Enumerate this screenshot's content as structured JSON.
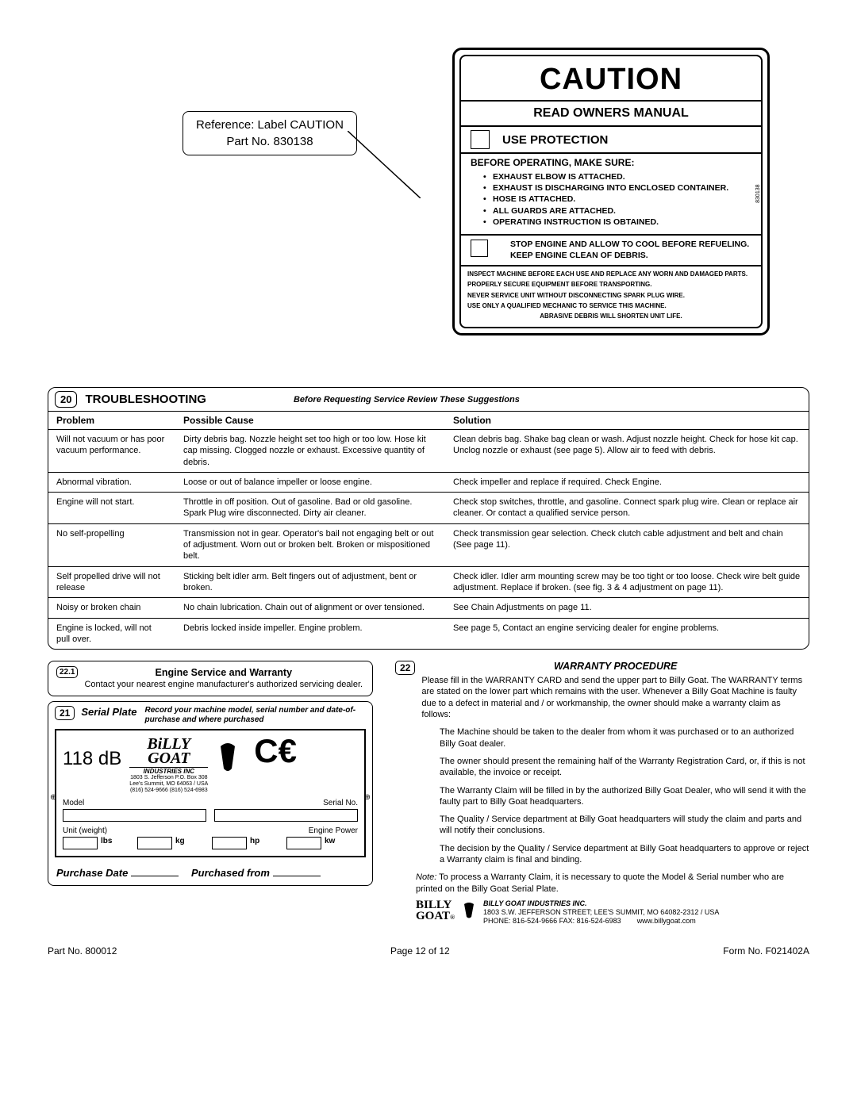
{
  "reference": {
    "line1": "Reference: Label CAUTION",
    "line2": "Part No. 830138"
  },
  "caution": {
    "title": "CAUTION",
    "subtitle": "READ OWNERS MANUAL",
    "protection": "USE PROTECTION",
    "before_title": "BEFORE OPERATING, MAKE SURE:",
    "before_items": [
      "EXHAUST ELBOW IS ATTACHED.",
      "EXHAUST IS DISCHARGING INTO ENCLOSED CONTAINER.",
      "HOSE IS ATTACHED.",
      "ALL GUARDS ARE ATTACHED.",
      "OPERATING INSTRUCTION IS OBTAINED."
    ],
    "side_number": "830138",
    "stop": "STOP ENGINE AND ALLOW TO COOL BEFORE REFUELING. KEEP ENGINE CLEAN OF DEBRIS.",
    "inspect": [
      "INSPECT MACHINE BEFORE EACH USE AND REPLACE ANY WORN AND DAMAGED PARTS.",
      "PROPERLY SECURE EQUIPMENT BEFORE TRANSPORTING.",
      "NEVER SERVICE UNIT WITHOUT DISCONNECTING SPARK PLUG WIRE.",
      "USE ONLY A QUALIFIED MECHANIC TO SERVICE THIS MACHINE.",
      "ABRASIVE DEBRIS WILL SHORTEN UNIT LIFE."
    ]
  },
  "troubleshoot": {
    "num": "20",
    "title": "TROUBLESHOOTING",
    "note": "Before Requesting Service Review These Suggestions",
    "headers": [
      "Problem",
      "Possible Cause",
      "Solution"
    ],
    "rows": [
      [
        "Will not vacuum or has poor vacuum performance.",
        "Dirty debris bag. Nozzle height set too high or too low. Hose kit cap missing. Clogged nozzle or exhaust. Excessive quantity of debris.",
        "Clean debris bag. Shake bag clean or wash. Adjust nozzle height. Check for hose kit cap. Unclog nozzle or exhaust (see page 5). Allow air to feed with debris."
      ],
      [
        "Abnormal vibration.",
        "Loose or out of balance impeller or loose engine.",
        "Check impeller and replace if required. Check Engine."
      ],
      [
        "Engine will not start.",
        "Throttle in off position. Out of gasoline. Bad or old gasoline. Spark Plug wire disconnected. Dirty air cleaner.",
        "Check stop switches, throttle, and gasoline. Connect spark plug wire. Clean or replace air cleaner. Or contact a qualified service person."
      ],
      [
        "No self-propelling",
        "Transmission not in gear. Operator's bail not engaging belt or out of adjustment. Worn out or broken belt. Broken or mispositioned belt.",
        "Check transmission gear selection. Check clutch cable adjustment and belt and chain (See page 11)."
      ],
      [
        "Self propelled drive will not release",
        "Sticking belt idler arm. Belt fingers out of adjustment, bent or broken.",
        "Check idler. Idler arm mounting screw may be too tight or too loose. Check wire belt guide adjustment. Replace if broken. (see fig. 3 & 4 adjustment on page 11)."
      ],
      [
        "Noisy or broken chain",
        "No chain lubrication. Chain out of alignment or over tensioned.",
        "See Chain Adjustments on page 11."
      ],
      [
        "Engine is locked, will not pull over.",
        "Debris locked inside impeller. Engine problem.",
        "See page 5, Contact an engine servicing dealer for engine problems."
      ]
    ]
  },
  "engine_svc": {
    "num": "22.1",
    "title": "Engine Service and Warranty",
    "text": "Contact your nearest engine manufacturer's authorized servicing dealer."
  },
  "serial": {
    "num": "21",
    "title": "Serial Plate",
    "note": "Record your machine model, serial number and date-of-purchase and where purchased",
    "db": "118 dB",
    "brand1": "BiLLY",
    "brand2": "GOAT",
    "industries": "INDUSTRIES INC",
    "addr1": "1803 S. Jefferson   P.O. Box 308",
    "addr2": "Lee's Summit,  MO  64063 / USA",
    "addr3": "(816) 524-9666   (816) 524-6983",
    "model_label": "Model",
    "serial_label": "Serial No.",
    "weight_label": "Unit (weight)",
    "power_label": "Engine Power",
    "lbs": "lbs",
    "kg": "kg",
    "hp": "hp",
    "kw": "kw",
    "purchase_date": "Purchase Date",
    "purchased_from": "Purchased from"
  },
  "warranty": {
    "num": "22",
    "title": "WARRANTY PROCEDURE",
    "intro": "Please fill in the WARRANTY CARD and send the upper part to Billy Goat. The WARRANTY terms are stated on the lower part which remains with the user. Whenever a Billy Goat Machine is faulty due to a defect in material and / or workmanship, the owner should make a warranty claim as follows:",
    "items": [
      "The Machine should be taken to the dealer from whom it was purchased or to an authorized Billy Goat dealer.",
      "The owner should present the remaining half of the Warranty Registration Card, or, if this is not available, the invoice or receipt.",
      "The Warranty Claim will be filled in by the authorized Billy Goat Dealer, who will send it with the faulty part to Billy Goat headquarters.",
      "The Quality / Service department at Billy Goat headquarters will study the claim and parts and will notify their conclusions.",
      "The decision by the Quality / Service department at Billy Goat headquarters to approve or reject a Warranty claim is final and binding."
    ],
    "note_label": "Note:",
    "note_text": "To process a Warranty Claim, it is necessary to quote the Model & Serial number who are printed on the Billy Goat Serial Plate.",
    "footer_company": "BILLY GOAT INDUSTRIES INC.",
    "footer_addr": "1803 S.W. JEFFERSON STREET; LEE'S SUMMIT, MO 64082-2312 / USA",
    "footer_phone": "PHONE: 816-524-9666 FAX: 816-524-6983",
    "footer_web": "www.billygoat.com"
  },
  "footer": {
    "part": "Part No. 800012",
    "page": "Page 12 of 12",
    "form": "Form No. F021402A"
  }
}
